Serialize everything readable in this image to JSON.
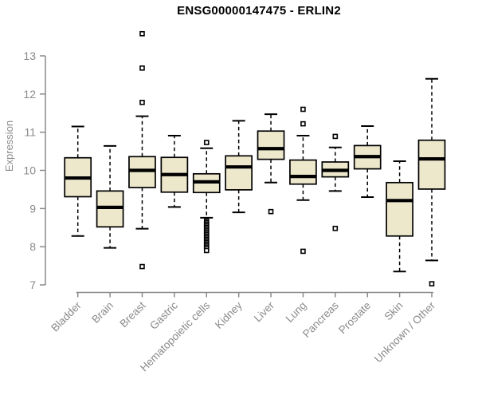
{
  "title": "ENSG00000147475 - ERLIN2",
  "chart_data": {
    "type": "boxplot",
    "title": "ENSG00000147475 - ERLIN2",
    "xlabel": "",
    "ylabel": "Expression",
    "ylim": [
      7,
      13
    ],
    "yticks": [
      7,
      8,
      9,
      10,
      11,
      12,
      13
    ],
    "grid": false,
    "legend": "none",
    "categories": [
      "Bladder",
      "Brain",
      "Breast",
      "Gastric",
      "Hematopoietic cells",
      "Kidney",
      "Liver",
      "Lung",
      "Pancreas",
      "Prostate",
      "Skin",
      "Unknown / Other"
    ],
    "series": [
      {
        "name": "Bladder",
        "whisker_low": 8.28,
        "q1": 9.31,
        "median": 9.8,
        "q3": 10.33,
        "whisker_high": 11.15,
        "outliers": []
      },
      {
        "name": "Brain",
        "whisker_low": 7.97,
        "q1": 8.52,
        "median": 9.03,
        "q3": 9.46,
        "whisker_high": 10.64,
        "outliers": []
      },
      {
        "name": "Breast",
        "whisker_low": 8.47,
        "q1": 9.55,
        "median": 10.0,
        "q3": 10.36,
        "whisker_high": 11.42,
        "outliers": [
          13.58,
          12.68,
          11.78,
          7.48
        ]
      },
      {
        "name": "Gastric",
        "whisker_low": 9.04,
        "q1": 9.43,
        "median": 9.89,
        "q3": 10.34,
        "whisker_high": 10.91,
        "outliers": []
      },
      {
        "name": "Hematopoietic cells",
        "whisker_low": 8.76,
        "q1": 9.42,
        "median": 9.7,
        "q3": 9.91,
        "whisker_high": 10.58,
        "outliers": [
          10.73,
          8.67,
          8.63,
          8.59,
          8.55,
          8.51,
          8.47,
          8.43,
          8.39,
          8.35,
          8.31,
          8.27,
          8.23,
          8.19,
          8.15,
          8.11,
          8.07,
          8.03,
          7.99,
          7.95,
          7.9
        ]
      },
      {
        "name": "Kidney",
        "whisker_low": 8.9,
        "q1": 9.49,
        "median": 10.09,
        "q3": 10.38,
        "whisker_high": 11.3,
        "outliers": []
      },
      {
        "name": "Liver",
        "whisker_low": 9.68,
        "q1": 10.29,
        "median": 10.57,
        "q3": 11.03,
        "whisker_high": 11.47,
        "outliers": [
          8.92
        ]
      },
      {
        "name": "Lung",
        "whisker_low": 9.22,
        "q1": 9.64,
        "median": 9.84,
        "q3": 10.27,
        "whisker_high": 10.91,
        "outliers": [
          11.6,
          11.22,
          7.88
        ]
      },
      {
        "name": "Pancreas",
        "whisker_low": 9.46,
        "q1": 9.83,
        "median": 10.0,
        "q3": 10.22,
        "whisker_high": 10.6,
        "outliers": [
          10.89,
          8.48
        ]
      },
      {
        "name": "Prostate",
        "whisker_low": 9.3,
        "q1": 10.04,
        "median": 10.36,
        "q3": 10.65,
        "whisker_high": 11.16,
        "outliers": []
      },
      {
        "name": "Skin",
        "whisker_low": 7.35,
        "q1": 8.28,
        "median": 9.21,
        "q3": 9.68,
        "whisker_high": 10.24,
        "outliers": []
      },
      {
        "name": "Unknown / Other",
        "whisker_low": 7.64,
        "q1": 9.51,
        "median": 10.3,
        "q3": 10.79,
        "whisker_high": 12.4,
        "outliers": [
          7.03
        ]
      }
    ],
    "colors": {
      "box_fill": "#EDE8CC",
      "box_stroke": "#000000",
      "median": "#000000",
      "whisker": "#000000",
      "outlier_stroke": "#000000",
      "outlier_fill": "#ffffff",
      "axis": "#8a8a8a",
      "tick_label": "#8a8a8a",
      "title": "#000000",
      "background": "#ffffff"
    }
  }
}
